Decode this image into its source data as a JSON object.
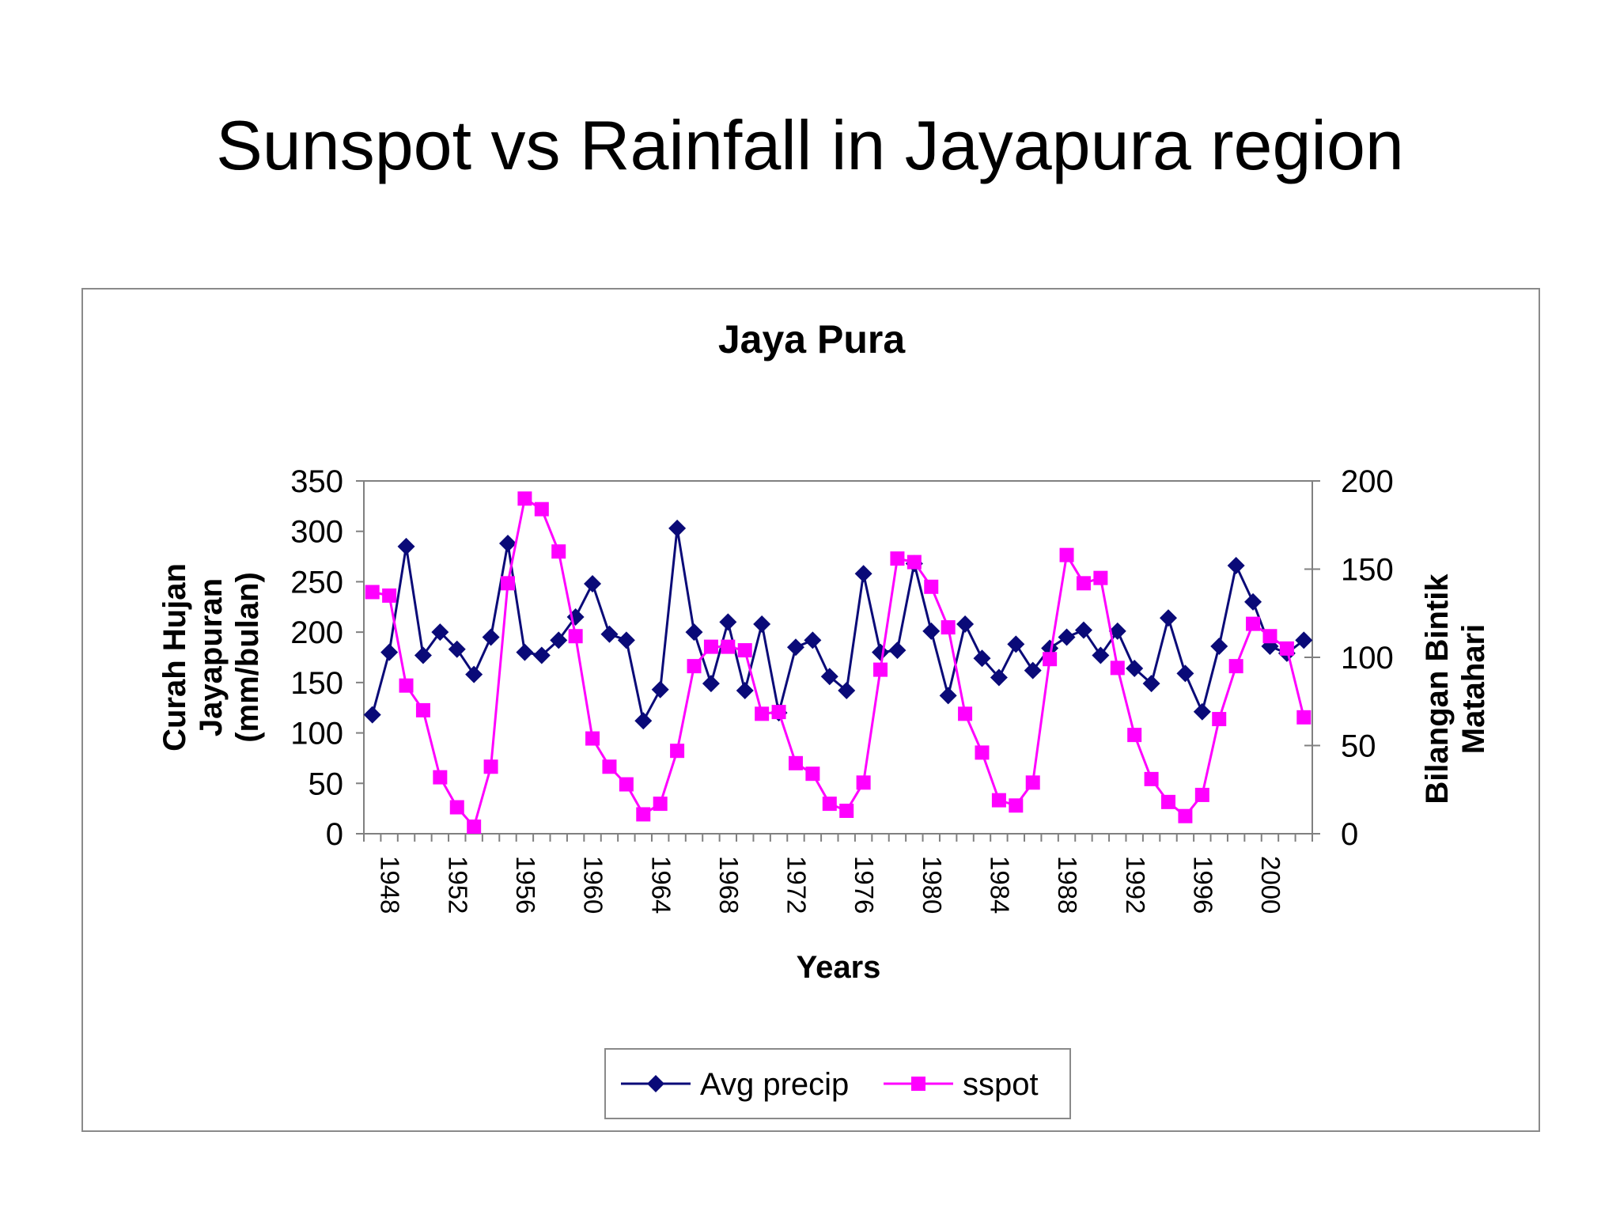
{
  "slide": {
    "title": "Sunspot vs Rainfall in Jayapura region"
  },
  "colors": {
    "precip": "#0a0a78",
    "sspot": "#ff00ff",
    "axis": "#808080",
    "frame": "#8a8a8a"
  },
  "chart_data": {
    "type": "line",
    "title": "Jaya Pura",
    "xlabel": "Years",
    "ylabel": [
      "Curah Hujan",
      "Jayapuran",
      "(mm/bulan)"
    ],
    "y2label": [
      "Bilangan Bintik",
      "Matahari"
    ],
    "ylim": [
      0,
      350
    ],
    "y2lim": [
      0,
      200
    ],
    "yticks": [
      "0",
      "50",
      "100",
      "150",
      "200",
      "250",
      "300",
      "350"
    ],
    "y2ticks": [
      "0",
      "50",
      "100",
      "150",
      "200"
    ],
    "x": [
      1948,
      1949,
      1950,
      1951,
      1952,
      1953,
      1954,
      1955,
      1956,
      1957,
      1958,
      1959,
      1960,
      1961,
      1962,
      1963,
      1964,
      1965,
      1966,
      1967,
      1968,
      1969,
      1970,
      1971,
      1972,
      1973,
      1974,
      1975,
      1976,
      1977,
      1978,
      1979,
      1980,
      1981,
      1982,
      1983,
      1984,
      1985,
      1986,
      1987,
      1988,
      1989,
      1990,
      1991,
      1992,
      1993,
      1994,
      1995,
      1996,
      1997,
      1998,
      1999,
      2000,
      2001,
      2002,
      2003
    ],
    "xticks": [
      "1948",
      "1952",
      "1956",
      "1960",
      "1964",
      "1968",
      "1972",
      "1976",
      "1980",
      "1984",
      "1988",
      "1992",
      "1996",
      "2000"
    ],
    "legend_position": "bottom",
    "series": [
      {
        "name": "Avg precip",
        "axis": "left",
        "marker": "diamond",
        "values": [
          118,
          180,
          285,
          177,
          200,
          183,
          158,
          195,
          288,
          180,
          177,
          192,
          215,
          248,
          198,
          192,
          112,
          143,
          303,
          200,
          149,
          210,
          142,
          208,
          120,
          185,
          192,
          156,
          142,
          258,
          180,
          182,
          268,
          201,
          137,
          208,
          174,
          155,
          188,
          162,
          184,
          195,
          202,
          177,
          201,
          164,
          149,
          214,
          159,
          121,
          186,
          266,
          230,
          186,
          179,
          192
        ]
      },
      {
        "name": "sspot",
        "axis": "right",
        "marker": "square",
        "values": [
          137,
          135,
          84,
          70,
          32,
          15,
          4,
          38,
          142,
          190,
          184,
          160,
          112,
          54,
          38,
          28,
          11,
          17,
          47,
          95,
          106,
          106,
          104,
          68,
          69,
          40,
          34,
          17,
          13,
          29,
          93,
          156,
          154,
          140,
          117,
          68,
          46,
          19,
          16,
          29,
          99,
          158,
          142,
          145,
          94,
          56,
          31,
          18,
          10,
          22,
          65,
          95,
          119,
          112,
          105,
          66
        ]
      }
    ]
  }
}
